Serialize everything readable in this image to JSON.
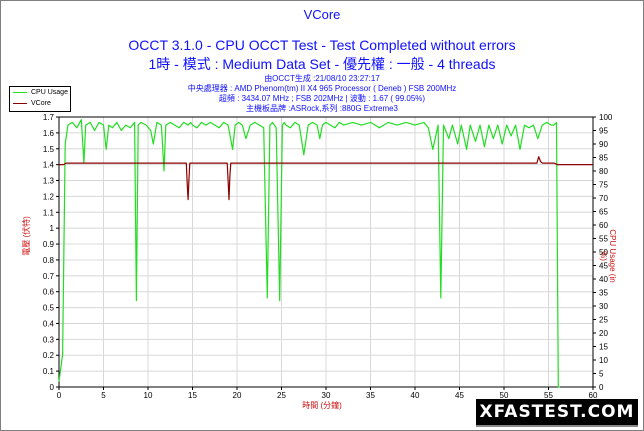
{
  "header": {
    "title": "VCore",
    "subtitle": "OCCT 3.1.0 - CPU OCCT Test - Test Completed without errors",
    "params": "1時 - 模式 : Medium Data Set - 優先權 : 一般 - 4 threads",
    "info": [
      "由OCCT生成 :21/08/10 23:27:17",
      "中央處理器 : AMD Phenom(tm) II X4 965 Processor ( Deneb ) FSB 200MHz",
      "超頻 : 3434.07 MHz ; FSB 202MHz | 波動 : 1.67 ( 99.05%)",
      "主機板品牌 :ASRock,系列 :880G Extreme3"
    ]
  },
  "watermark": "XFASTEST.COM",
  "chart_data": {
    "type": "line",
    "xlabel": "時間 (分鐘)",
    "ylabel_left": "電壓 (伏特)",
    "ylabel_right": "CPU Usage (in %)",
    "xlim": [
      0,
      60
    ],
    "ylim_left": [
      0,
      1.7
    ],
    "ylim_right": [
      0,
      100
    ],
    "x_ticks": [
      0,
      5,
      10,
      15,
      20,
      25,
      30,
      35,
      40,
      45,
      50,
      55,
      60
    ],
    "y_ticks_left": [
      0,
      0.1,
      0.2,
      0.3,
      0.4,
      0.5,
      0.6,
      0.7,
      0.8,
      0.9,
      1,
      1.1,
      1.2,
      1.3,
      1.4,
      1.5,
      1.6,
      1.7
    ],
    "y_ticks_right": [
      0,
      5,
      10,
      15,
      20,
      25,
      30,
      35,
      40,
      45,
      50,
      55,
      60,
      65,
      70,
      75,
      80,
      85,
      90,
      95,
      100
    ],
    "grid": true,
    "legend_position": "top-left",
    "series": [
      {
        "name": "CPU Usage",
        "axis": "right",
        "color": "#22dd22",
        "x": [
          0,
          0.4,
          0.7,
          1.0,
          1.5,
          2.0,
          2.5,
          2.8,
          3.0,
          3.5,
          4.0,
          4.5,
          5.0,
          5.3,
          5.6,
          6.0,
          6.5,
          7.0,
          7.5,
          8.0,
          8.5,
          8.7,
          8.9,
          9.2,
          9.8,
          10.3,
          10.6,
          11.0,
          11.5,
          11.8,
          12.0,
          12.5,
          13.0,
          13.5,
          14.0,
          14.5,
          14.8,
          15.0,
          15.5,
          16.0,
          16.5,
          17.0,
          17.5,
          18.0,
          18.5,
          19.0,
          19.5,
          19.8,
          20.2,
          20.6,
          21.0,
          21.5,
          22.0,
          22.5,
          23.0,
          23.4,
          23.7,
          24.0,
          24.4,
          24.8,
          25.1,
          25.3,
          25.5,
          26.0,
          26.5,
          27.0,
          27.5,
          28.0,
          28.5,
          29.0,
          29.3,
          29.6,
          30.0,
          30.5,
          31.0,
          31.5,
          32.0,
          33.0,
          34.0,
          35.0,
          36.0,
          37.0,
          38.0,
          39.0,
          40.0,
          41.0,
          41.5,
          42.0,
          42.6,
          42.9,
          43.2,
          43.8,
          44.2,
          44.8,
          45.2,
          45.8,
          46.2,
          46.8,
          47.3,
          47.8,
          48.3,
          48.8,
          49.3,
          49.8,
          50.3,
          50.8,
          51.3,
          51.8,
          52.3,
          52.8,
          53.3,
          53.8,
          54.3,
          54.8,
          55.3,
          55.6,
          55.9,
          56.1,
          56.3
        ],
        "values": [
          2,
          12,
          90,
          97,
          98,
          96,
          99,
          83,
          97,
          98,
          95,
          98,
          97,
          88,
          97,
          96,
          98,
          95,
          97,
          96,
          98,
          32,
          97,
          98,
          97,
          95,
          90,
          98,
          97,
          80,
          97,
          98,
          97,
          96,
          98,
          97,
          98,
          97,
          96,
          98,
          97,
          98,
          97,
          96,
          98,
          97,
          88,
          97,
          98,
          97,
          92,
          97,
          98,
          97,
          96,
          33,
          97,
          98,
          96,
          32,
          97,
          98,
          97,
          96,
          98,
          97,
          86,
          97,
          98,
          97,
          92,
          97,
          98,
          97,
          96,
          98,
          97,
          98,
          97,
          98,
          96,
          98,
          97,
          98,
          97,
          98,
          96,
          88,
          97,
          33,
          97,
          92,
          97,
          90,
          97,
          88,
          97,
          91,
          97,
          89,
          97,
          92,
          97,
          90,
          97,
          93,
          97,
          88,
          97,
          96,
          97,
          92,
          97,
          98,
          97,
          97,
          98,
          0,
          0
        ]
      },
      {
        "name": "VCore",
        "axis": "left",
        "color": "#8b0000",
        "x": [
          0,
          0.5,
          0.8,
          1.0,
          5.0,
          10.0,
          14.3,
          14.4,
          14.5,
          14.6,
          14.7,
          15.0,
          18.9,
          19.0,
          19.1,
          19.2,
          19.3,
          20.0,
          25.0,
          30.0,
          35.0,
          40.0,
          45.0,
          50.0,
          53.7,
          53.9,
          54.1,
          54.3,
          55.0,
          55.6,
          56.0,
          60.0
        ],
        "values": [
          1.4,
          1.4,
          1.41,
          1.41,
          1.41,
          1.41,
          1.41,
          1.28,
          1.18,
          1.3,
          1.41,
          1.41,
          1.41,
          1.3,
          1.18,
          1.33,
          1.41,
          1.41,
          1.41,
          1.41,
          1.41,
          1.41,
          1.41,
          1.41,
          1.41,
          1.45,
          1.42,
          1.41,
          1.41,
          1.41,
          1.4,
          1.4
        ]
      }
    ]
  }
}
